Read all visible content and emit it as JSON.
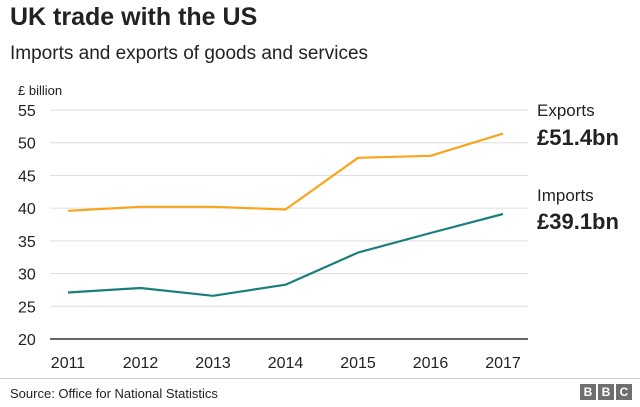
{
  "chart_data": {
    "type": "line",
    "title": "UK trade with the US",
    "subtitle": "Imports and exports of goods and services",
    "ylabel": "£ billion",
    "xlabel": "",
    "categories": [
      "2011",
      "2012",
      "2013",
      "2014",
      "2015",
      "2016",
      "2017"
    ],
    "yticks": [
      "20",
      "25",
      "30",
      "35",
      "40",
      "45",
      "50",
      "55"
    ],
    "ylim": [
      20,
      55
    ],
    "grid": true,
    "series": [
      {
        "name": "Exports",
        "color": "#f8a51b",
        "values": [
          39.6,
          40.2,
          40.2,
          39.8,
          47.7,
          48.0,
          51.4
        ],
        "endLabel": "£51.4bn"
      },
      {
        "name": "Imports",
        "color": "#1a7f7a",
        "values": [
          27.1,
          27.8,
          26.6,
          28.3,
          33.2,
          36.2,
          39.1
        ],
        "endLabel": "£39.1bn"
      }
    ]
  },
  "footer": {
    "source": "Source: Office for National Statistics",
    "logo_letters": [
      "B",
      "B",
      "C"
    ]
  }
}
